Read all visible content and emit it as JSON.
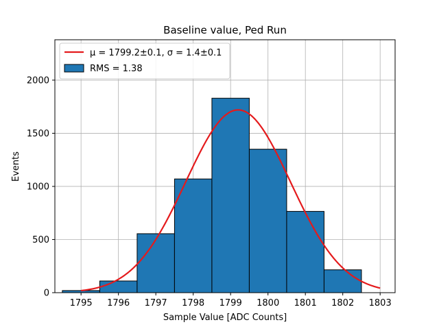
{
  "chart_data": {
    "type": "bar",
    "title": "Baseline value, Ped Run",
    "xlabel": "Sample Value [ADC Counts]",
    "ylabel": "Events",
    "xlim": [
      1794.3,
      1803.4
    ],
    "ylim": [
      0,
      2380
    ],
    "xticks": [
      1795,
      1796,
      1797,
      1798,
      1799,
      1800,
      1801,
      1802,
      1803
    ],
    "yticks": [
      0,
      500,
      1000,
      1500,
      2000
    ],
    "grid": true,
    "legend_position": "top-left",
    "histogram": {
      "name": "RMS = 1.38",
      "color": "#1f77b4",
      "edge_color": "#000000",
      "bins": [
        {
          "left": 1794.5,
          "right": 1795.5,
          "count": 20
        },
        {
          "left": 1795.5,
          "right": 1796.5,
          "count": 110
        },
        {
          "left": 1796.5,
          "right": 1797.5,
          "count": 555
        },
        {
          "left": 1797.5,
          "right": 1798.5,
          "count": 1070
        },
        {
          "left": 1798.5,
          "right": 1799.5,
          "count": 1830
        },
        {
          "left": 1799.5,
          "right": 1800.5,
          "count": 1350
        },
        {
          "left": 1800.5,
          "right": 1801.5,
          "count": 765
        },
        {
          "left": 1801.5,
          "right": 1802.5,
          "count": 215
        }
      ]
    },
    "fit": {
      "name": "μ = 1799.2±0.1, σ = 1.4±0.1",
      "color": "#e41a1c",
      "mu": 1799.2,
      "sigma": 1.4,
      "amplitude": 1720,
      "x_range": [
        1795,
        1803
      ]
    }
  }
}
